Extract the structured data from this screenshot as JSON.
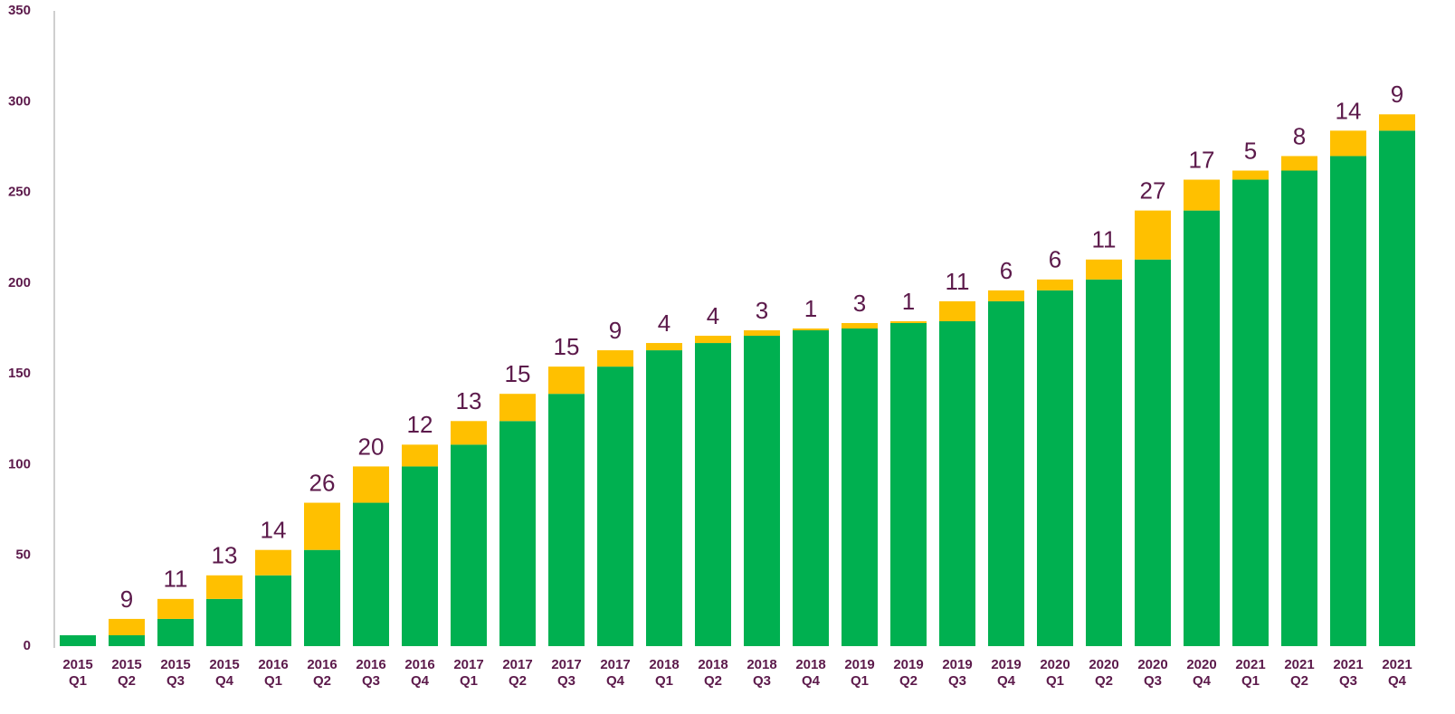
{
  "chart_data": {
    "type": "stacked_bar",
    "categories": [
      "2015 Q1",
      "2015 Q2",
      "2015 Q3",
      "2015 Q4",
      "2016 Q1",
      "2016 Q2",
      "2016 Q3",
      "2016 Q4",
      "2017 Q1",
      "2017 Q2",
      "2017 Q3",
      "2017 Q4",
      "2018 Q1",
      "2018 Q2",
      "2018 Q3",
      "2018 Q4",
      "2019 Q1",
      "2019 Q2",
      "2019 Q3",
      "2019 Q4",
      "2020 Q1",
      "2020 Q2",
      "2020 Q3",
      "2020 Q4",
      "2021 Q1",
      "2021 Q2",
      "2021 Q3",
      "2021 Q4"
    ],
    "series": [
      {
        "color": "#00b050",
        "values": [
          6,
          6,
          15,
          26,
          39,
          53,
          79,
          99,
          111,
          124,
          139,
          154,
          163,
          167,
          171,
          174,
          175,
          178,
          179,
          190,
          196,
          202,
          213,
          240,
          257,
          262,
          270,
          284
        ]
      },
      {
        "color": "#ffc000",
        "values": [
          null,
          9,
          11,
          13,
          14,
          26,
          20,
          12,
          13,
          15,
          15,
          9,
          4,
          4,
          3,
          1,
          3,
          1,
          11,
          6,
          6,
          11,
          27,
          17,
          5,
          8,
          14,
          9
        ],
        "labels": true
      }
    ],
    "ylim": [
      0,
      350
    ],
    "yticks": [
      0,
      50,
      100,
      150,
      200,
      250,
      300,
      350
    ],
    "grid": false
  }
}
